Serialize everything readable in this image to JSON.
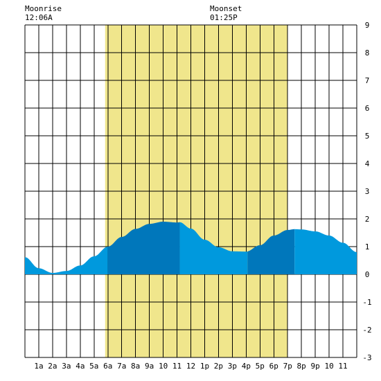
{
  "header": {
    "moonrise_label": "Moonrise",
    "moonrise_time": "12:06A",
    "moonset_label": "Moonset",
    "moonset_time": "01:25P"
  },
  "chart_data": {
    "type": "area",
    "title": "",
    "xlabel": "",
    "ylabel": "",
    "x_tick_labels": [
      "1a",
      "2a",
      "3a",
      "4a",
      "5a",
      "6a",
      "7a",
      "8a",
      "9a",
      "10",
      "11",
      "12",
      "1p",
      "2p",
      "3p",
      "4p",
      "5p",
      "6p",
      "7p",
      "8p",
      "9p",
      "10",
      "11"
    ],
    "xlim": [
      0,
      24
    ],
    "ylim": [
      -3,
      9
    ],
    "y_ticks": [
      -3,
      -2,
      -1,
      0,
      1,
      2,
      3,
      4,
      5,
      6,
      7,
      8,
      9
    ],
    "grid": true,
    "daylight_band": {
      "start_hour": 5.8,
      "end_hour": 19.0
    },
    "series": [
      {
        "x": [
          0,
          1,
          2,
          3,
          4,
          5,
          6,
          7,
          8,
          9,
          10,
          11,
          11.2,
          12,
          13,
          14,
          15,
          16,
          17,
          18,
          19,
          19.5,
          20,
          21,
          22,
          23,
          24
        ],
        "values": [
          0.62,
          0.22,
          0.05,
          0.12,
          0.32,
          0.65,
          1.0,
          1.35,
          1.64,
          1.82,
          1.9,
          1.87,
          1.88,
          1.65,
          1.25,
          0.98,
          0.83,
          0.82,
          1.05,
          1.4,
          1.6,
          1.63,
          1.62,
          1.55,
          1.4,
          1.14,
          0.8
        ]
      }
    ],
    "fill_colors": {
      "light": "#0099dd",
      "dark": "#0077bb"
    },
    "shade_boundaries_hours": [
      11.2,
      16.1,
      19.5
    ],
    "band_color": "#f0e68c",
    "grid_color": "#000000"
  }
}
